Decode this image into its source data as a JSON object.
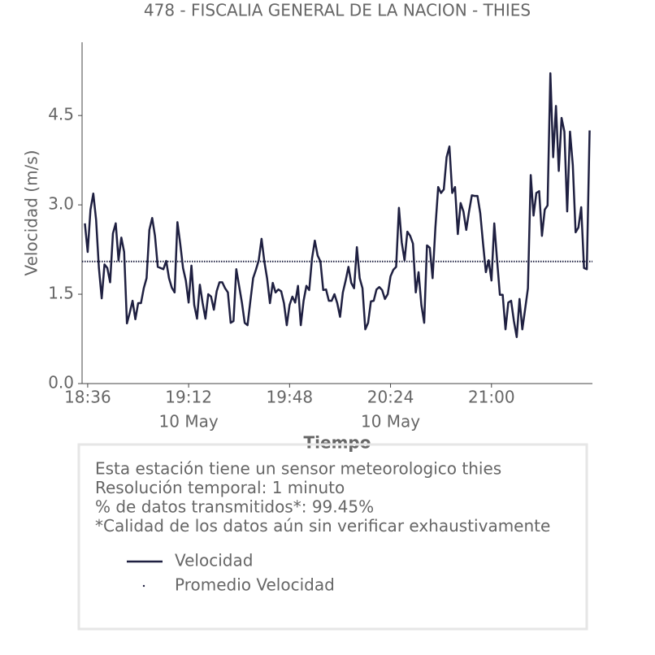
{
  "chart_data": {
    "type": "line",
    "title": "478 - FISCALIA GENERAL DE LA NACION - THIES",
    "ylabel": "Velocidad (m/s)",
    "xlabel": "Tiempo",
    "xlim": [
      "18:34",
      "21:36"
    ],
    "xticks": [
      "18:36",
      "19:12",
      "19:48",
      "20:24",
      "21:00"
    ],
    "xtick_dates": [
      null,
      "10 May",
      null,
      "10 May",
      null
    ],
    "ylim": [
      0,
      5.73
    ],
    "yticks": [
      {
        "value": 0,
        "label": "0.0"
      },
      1.5,
      {
        "value": 3,
        "label": "3.0"
      },
      4.5
    ],
    "x": [
      "18:35",
      "18:36",
      "18:37",
      "18:38",
      "18:39",
      "18:40",
      "18:41",
      "18:42",
      "18:43",
      "18:44",
      "18:45",
      "18:46",
      "18:47",
      "18:48",
      "18:49",
      "18:50",
      "18:51",
      "18:52",
      "18:53",
      "18:54",
      "18:55",
      "18:56",
      "18:57",
      "18:58",
      "18:59",
      "19:00",
      "19:01",
      "19:02",
      "19:03",
      "19:04",
      "19:05",
      "19:06",
      "19:07",
      "19:08",
      "19:09",
      "19:10",
      "19:11",
      "19:12",
      "19:13",
      "19:14",
      "19:15",
      "19:16",
      "19:17",
      "19:18",
      "19:19",
      "19:20",
      "19:21",
      "19:22",
      "19:23",
      "19:24",
      "19:25",
      "19:26",
      "19:27",
      "19:28",
      "19:29",
      "19:30",
      "19:31",
      "19:32",
      "19:33",
      "19:34",
      "19:35",
      "19:36",
      "19:37",
      "19:38",
      "19:39",
      "19:40",
      "19:41",
      "19:42",
      "19:43",
      "19:44",
      "19:45",
      "19:46",
      "19:47",
      "19:48",
      "19:49",
      "19:50",
      "19:51",
      "19:52",
      "19:53",
      "19:54",
      "19:55",
      "19:56",
      "19:57",
      "19:58",
      "19:59",
      "20:00",
      "20:01",
      "20:02",
      "20:03",
      "20:04",
      "20:05",
      "20:06",
      "20:07",
      "20:08",
      "20:09",
      "20:10",
      "20:11",
      "20:12",
      "20:13",
      "20:14",
      "20:15",
      "20:16",
      "20:17",
      "20:18",
      "20:19",
      "20:20",
      "20:21",
      "20:22",
      "20:23",
      "20:24",
      "20:25",
      "20:26",
      "20:27",
      "20:28",
      "20:29",
      "20:30",
      "20:31",
      "20:32",
      "20:33",
      "20:34",
      "20:35",
      "20:36",
      "20:37",
      "20:38",
      "20:39",
      "20:40",
      "20:41",
      "20:42",
      "20:43",
      "20:44",
      "20:45",
      "20:46",
      "20:47",
      "20:48",
      "20:49",
      "20:50",
      "20:51",
      "20:52",
      "20:53",
      "20:54",
      "20:55",
      "20:56",
      "20:57",
      "20:58",
      "20:59",
      "21:00",
      "21:01",
      "21:02",
      "21:03",
      "21:04",
      "21:05",
      "21:06",
      "21:07",
      "21:08",
      "21:09",
      "21:10",
      "21:11",
      "21:12",
      "21:13",
      "21:14",
      "21:15",
      "21:16",
      "21:17",
      "21:18",
      "21:19",
      "21:20",
      "21:21",
      "21:22",
      "21:23",
      "21:24",
      "21:25",
      "21:26",
      "21:27",
      "21:28",
      "21:29",
      "21:30",
      "21:31",
      "21:32",
      "21:33",
      "21:34",
      "21:35"
    ],
    "series": [
      {
        "name": "Velocidad",
        "color": "#1f2041",
        "values": [
          2.69,
          2.21,
          2.92,
          3.19,
          2.75,
          1.94,
          1.43,
          2.0,
          1.94,
          1.7,
          2.52,
          2.69,
          2.07,
          2.45,
          2.21,
          1.01,
          1.19,
          1.39,
          1.08,
          1.35,
          1.35,
          1.6,
          1.77,
          2.58,
          2.78,
          2.48,
          1.96,
          1.94,
          1.92,
          2.06,
          1.77,
          1.61,
          1.53,
          2.71,
          2.35,
          1.94,
          1.73,
          1.36,
          1.98,
          1.32,
          1.09,
          1.66,
          1.35,
          1.09,
          1.5,
          1.46,
          1.24,
          1.55,
          1.7,
          1.7,
          1.6,
          1.53,
          1.02,
          1.05,
          1.92,
          1.64,
          1.36,
          1.02,
          0.98,
          1.38,
          1.77,
          1.91,
          2.07,
          2.43,
          2.05,
          1.76,
          1.35,
          1.69,
          1.53,
          1.58,
          1.55,
          1.35,
          0.98,
          1.32,
          1.46,
          1.36,
          1.64,
          0.98,
          1.39,
          1.64,
          1.57,
          2.1,
          2.4,
          2.15,
          2.05,
          1.57,
          1.58,
          1.39,
          1.39,
          1.5,
          1.35,
          1.12,
          1.53,
          1.73,
          1.96,
          1.69,
          1.6,
          2.29,
          1.77,
          1.6,
          0.91,
          1.02,
          1.38,
          1.39,
          1.58,
          1.62,
          1.57,
          1.42,
          1.5,
          1.8,
          1.91,
          1.96,
          2.95,
          2.37,
          2.07,
          2.55,
          2.48,
          2.35,
          1.53,
          1.87,
          1.32,
          1.02,
          2.32,
          2.28,
          1.77,
          2.62,
          3.3,
          3.2,
          3.26,
          3.8,
          3.98,
          3.2,
          3.3,
          2.51,
          3.03,
          2.89,
          2.58,
          2.89,
          3.16,
          3.15,
          3.15,
          2.86,
          2.35,
          1.87,
          2.07,
          1.73,
          2.69,
          2.07,
          1.49,
          1.49,
          0.91,
          1.36,
          1.39,
          1.05,
          0.78,
          1.42,
          0.91,
          1.25,
          1.6,
          3.5,
          2.82,
          3.2,
          3.23,
          2.48,
          2.92,
          2.99,
          5.21,
          3.8,
          4.66,
          3.57,
          4.46,
          4.23,
          2.89,
          4.23,
          3.67,
          2.54,
          2.62,
          2.96,
          1.94,
          1.92,
          4.25
        ]
      }
    ],
    "mean": {
      "name": "Promedio Velocidad",
      "value": 2.05,
      "color": "#1f2041"
    },
    "notes": [
      "Esta estación tiene un sensor meteorologico thies",
      "Resolución temporal: 1 minuto",
      "% de datos transmitidos*: 99.45%",
      "*Calidad de los datos aún sin verificar exhaustivamente"
    ]
  }
}
